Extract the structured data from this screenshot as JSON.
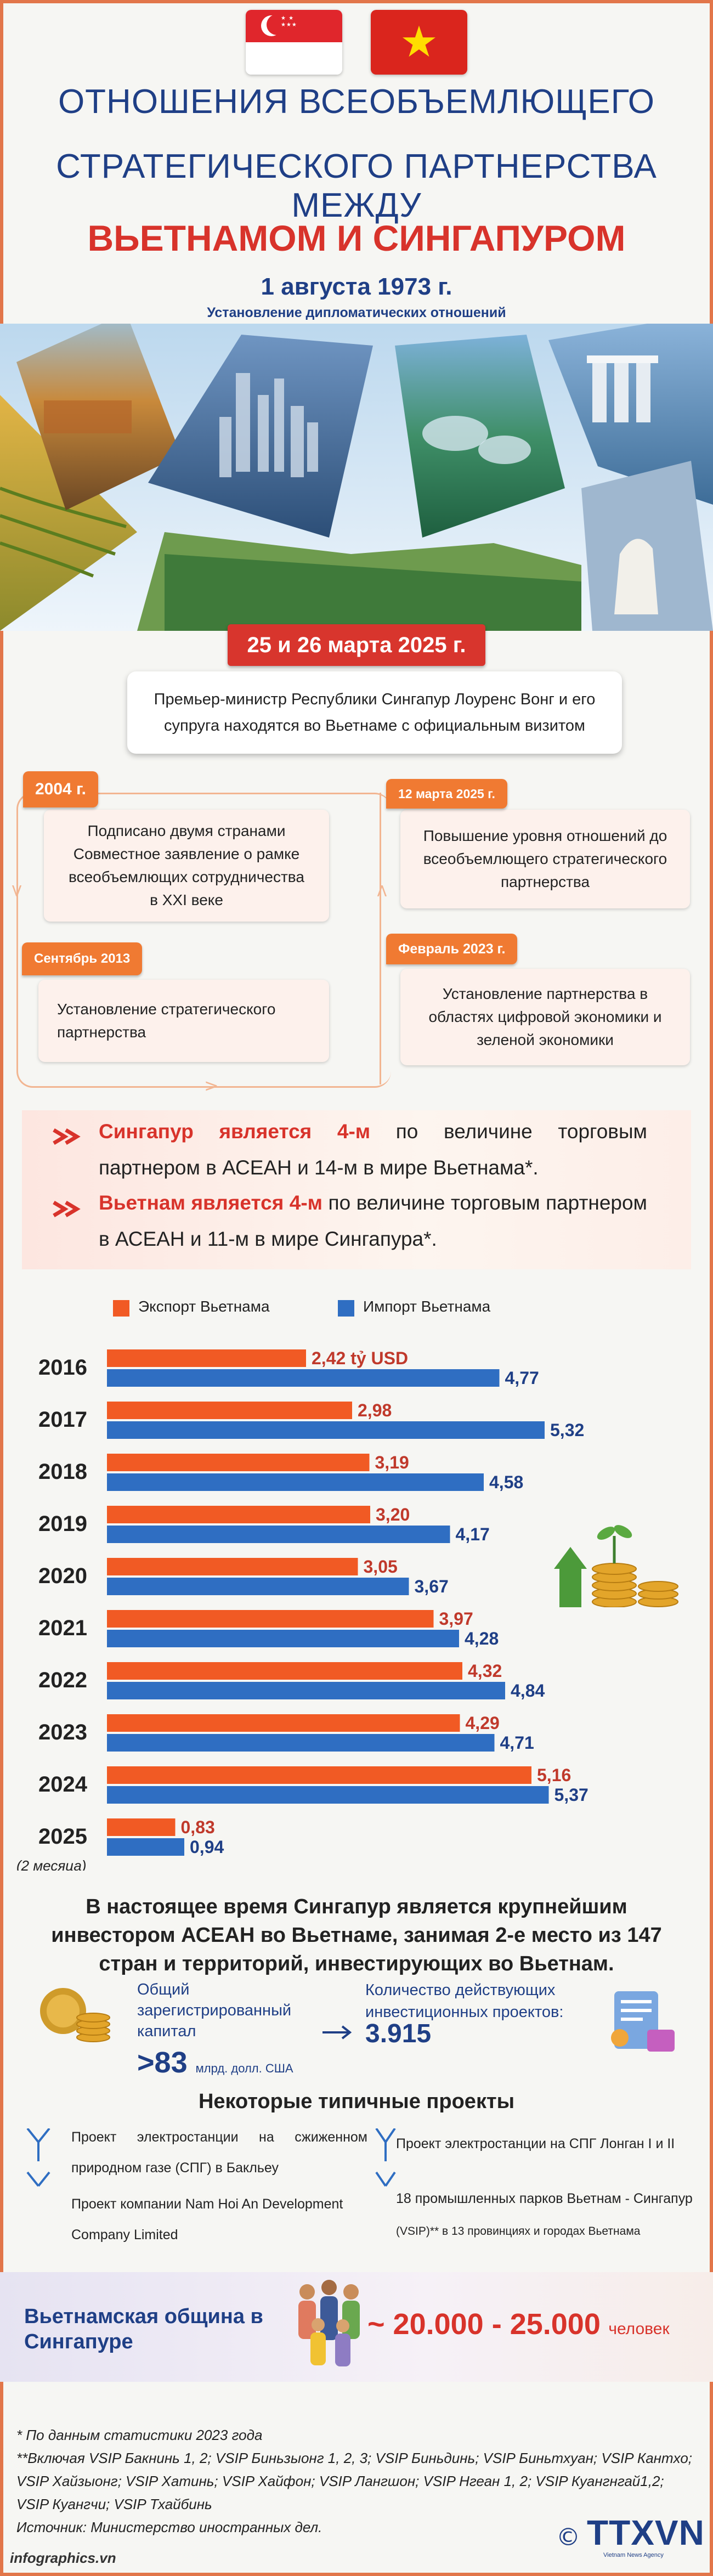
{
  "header": {
    "title_line1": "ОТНОШЕНИЯ ВСЕОБЪЕМЛЮЩЕГО",
    "title_line2": "СТРАТЕГИЧЕСКОГО ПАРТНЕРСТВА МЕЖДУ",
    "title_line3": "ВЬЕТНАМОМ И СИНГАПУРОМ",
    "date": "1 августа 1973 г.",
    "date_caption": "Установление дипломатических отношений"
  },
  "visit": {
    "date": "25 и 26 марта 2025 г.",
    "text": "Премьер-министр Республики Сингапур Лоуренс Вонг и его супруга находятся во Вьетнаме с официальным визитом"
  },
  "timeline": [
    {
      "date": "2004 г.",
      "text": "Подписано двумя странами Совместное заявление о рамке всеобъемлющих сотрудничества в XXI веке"
    },
    {
      "date": "Сентябрь 2013",
      "text": "Установление стратегического партнерства"
    },
    {
      "date": "Февраль 2023 г.",
      "text": "Установление партнерства в областях цифровой экономики и зеленой экономики"
    },
    {
      "date": "12 марта 2025 г.",
      "text": "Повышение уровня отношений до всеобъемлющего стратегического партнерства"
    }
  ],
  "trade": {
    "line1": {
      "subject": "Сингапур является 4-м",
      "rest": " по величине торговым партнером в АСЕАН и 14-м в мире Вьетнама*."
    },
    "line2": {
      "subject": "Вьетнам является 4-м",
      "rest": " по величине торговым партнером в АСЕАН и 11-м в мире Сингапура*."
    }
  },
  "chart_data": {
    "type": "bar",
    "orientation": "horizontal",
    "categories": [
      "2016",
      "2017",
      "2018",
      "2019",
      "2020",
      "2021",
      "2022",
      "2023",
      "2024",
      "2025"
    ],
    "category_notes": {
      "2025": "(2 месяца)"
    },
    "series": [
      {
        "name": "Экспорт Вьетнама",
        "color": "#f15a24",
        "labels": [
          "2,42 tỷ USD",
          "2,98",
          "3,19",
          "3,20",
          "3,05",
          "3,97",
          "4,32",
          "4,29",
          "5,16",
          "0,83"
        ],
        "values": [
          2.42,
          2.98,
          3.19,
          3.2,
          3.05,
          3.97,
          4.32,
          4.29,
          5.16,
          0.83
        ]
      },
      {
        "name": "Импорт Вьетнама",
        "color": "#2f6ec2",
        "labels": [
          "4,77",
          "5,32",
          "4,58",
          "4,17",
          "3,67",
          "4,28",
          "4,84",
          "4,71",
          "5,37",
          "0,94"
        ],
        "values": [
          4.77,
          5.32,
          4.58,
          4.17,
          3.67,
          4.28,
          4.84,
          4.71,
          5.37,
          0.94
        ]
      }
    ],
    "legend_position": "top-left",
    "grid": false,
    "xlim": [
      0,
      6
    ]
  },
  "investment": {
    "title": "В настоящее время Сингапур является крупнейшим инвестором АСЕАН во Вьетнаме, занимая 2-е место из 147 стран и территорий, инвестирующих во Вьетнам.",
    "capital_label": "Общий зарегистрированный капитал",
    "capital_value": ">83",
    "capital_unit": "млрд. долл. США",
    "projects_label": "Количество действующих инвестиционных проектов:",
    "projects_value": "3.915"
  },
  "projects": {
    "title": "Некоторые типичные проекты",
    "items": [
      "Проект электростанции на сжиженном природном газе (СПГ) в Бакльеу",
      "Проект компании Nam Hoi An Development Company Limited",
      "Проект электростанции на СПГ Лонган I и II",
      "18 промышленных парков Вьетнам - Сингапур"
    ],
    "note": "(VSIP)** в 13 провинциях и городах Вьетнама"
  },
  "community": {
    "label": "Вьетнамская община в Сингапуре",
    "value": "~ 20.000 - 25.000",
    "unit": "человек"
  },
  "notes": {
    "line1": "* По данным статистики 2023 года",
    "line2": "**Включая VSIP Бакнинь 1, 2; VSIP Биньзыонг 1, 2, 3; VSIP Биньдинь; VSIP Биньтхуан; VSIP Кантхо; VSIP Хайзыонг; VSIP Хатинь; VSIP Хайфон; VSIP Лангшон; VSIP Нгеан 1, 2; VSIP Куангнгай1,2; VSIP Куангчи; VSIP Тхайбинь",
    "line3": "Источник: Министерство иностранных дел."
  },
  "footer": {
    "site": "infographics.vn",
    "agency": "TTXVN",
    "agency_sub": "Vietnam News Agency"
  },
  "colors": {
    "accent_red": "#d8332b",
    "navy": "#1f3f86",
    "orange": "#f07a32",
    "export": "#f15a24",
    "import": "#2f6ec2"
  }
}
